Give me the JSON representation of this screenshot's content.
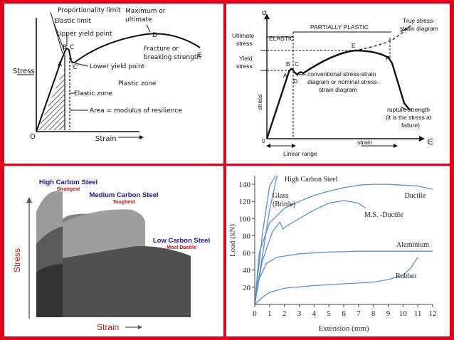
{
  "panel1": {
    "annotations": {
      "proportionality": "Proportionality limit",
      "elastic_limit": "Elastic limit",
      "upper_yield": "Upper yield point",
      "maximum": "Maximum or",
      "ultimate": "ultimate",
      "fracture1": "Fracture or",
      "fracture2": "breaking strength",
      "lower_yield": "Lower yield point",
      "elastic_zone": "Elastic zone",
      "plastic_zone": "Plastic zone",
      "area": "Area = modulus of resilience"
    },
    "points": {
      "A": "A",
      "B": "B",
      "C": "C",
      "Cp": "C'",
      "D": "D",
      "E": "E",
      "O": "O"
    },
    "ylabel": "Stress",
    "xlabel": "Strain"
  },
  "panel2": {
    "annotations": {
      "sigma": "σ",
      "epsilon": "∈",
      "elastic": "ELASTIC",
      "partially_plastic": "PARTIALLY PLASTIC",
      "ultimate1": "Ultimate",
      "ultimate2": "stress",
      "yield1": "Yield",
      "yield2": "stress",
      "true1": "True stress-",
      "true2": "strain diagram",
      "conv1": "conventional stress-strain",
      "conv2": "diagram or nominal stress-",
      "conv3": "strain diagram",
      "rupture1": "rupture strength",
      "rupture2": "(it is the stress at",
      "rupture3": "failure)",
      "linear": "Linear range",
      "strain": "strain",
      "stress": "stress"
    },
    "points": {
      "A": "A",
      "B": "B",
      "C": "C",
      "D": "D",
      "E": "E",
      "F": "F",
      "O": "0"
    }
  },
  "panel3": {
    "series": [
      {
        "name": "High Carbon Steel",
        "note": "Strongest"
      },
      {
        "name": "Medium Carbon Steel",
        "note": "Toughest"
      },
      {
        "name": "Low Carbon Steel",
        "note": "Most Ductile"
      }
    ],
    "ylabel": "Stress",
    "xlabel": "Strain",
    "colors": {
      "title": "#1a1a8c",
      "note": "#cc1111",
      "axis_label": "#cc1111"
    }
  },
  "chart_data": {
    "type": "line",
    "xlabel": "Extension (mm)",
    "ylabel": "Load (kN)",
    "xlim": [
      0,
      12
    ],
    "ylim": [
      0,
      150
    ],
    "xticks": [
      "0",
      "1",
      "2",
      "3",
      "4",
      "5",
      "6",
      "7",
      "8",
      "9",
      "10",
      "11",
      "12"
    ],
    "yticks": [
      "20",
      "40",
      "60",
      "80",
      "100",
      "120",
      "140"
    ],
    "series": [
      {
        "name": "High Carbon Steel",
        "label_lines": [
          "High Carbon Steel"
        ],
        "x": [
          0,
          0.5,
          1.0,
          1.4
        ],
        "y": [
          0,
          80,
          138,
          150
        ]
      },
      {
        "name": "Glass (Brittle)",
        "label_lines": [
          "Glass",
          "(Brittle)"
        ],
        "x": [
          0,
          0.5,
          1.0,
          1.5
        ],
        "y": [
          0,
          55,
          110,
          150
        ]
      },
      {
        "name": "Ductile",
        "label_lines": [
          "Ductile"
        ],
        "x": [
          0,
          0.3,
          1.0,
          2,
          3,
          4,
          5,
          6,
          7,
          8,
          9,
          10,
          11,
          12
        ],
        "y": [
          0,
          60,
          95,
          112,
          120,
          127,
          132,
          136,
          139,
          140,
          140,
          139,
          138,
          134
        ]
      },
      {
        "name": "M.S. -Ductile",
        "label_lines": [
          "M.S. -Ductile"
        ],
        "x": [
          0,
          0.5,
          1.2,
          1.7,
          1.9,
          2.2,
          3,
          4,
          5,
          6,
          7,
          7.5
        ],
        "y": [
          0,
          50,
          85,
          96,
          88,
          92,
          100,
          110,
          118,
          121,
          118,
          112
        ]
      },
      {
        "name": "Aluminium",
        "label_lines": [
          "Aluminium"
        ],
        "x": [
          0,
          0.3,
          0.8,
          1.5,
          3,
          5,
          7,
          9,
          10,
          11,
          12
        ],
        "y": [
          0,
          30,
          48,
          55,
          59,
          61,
          62,
          62,
          62,
          62,
          62
        ]
      },
      {
        "name": "Rubber",
        "label_lines": [
          "Rubber"
        ],
        "x": [
          0,
          0.5,
          1,
          2,
          4,
          6,
          8,
          9,
          10,
          10.5,
          11
        ],
        "y": [
          0,
          8,
          14,
          19,
          22,
          24,
          26,
          29,
          34,
          42,
          55
        ]
      }
    ],
    "colors": {
      "line": "#5b8fd6",
      "axis": "#444444",
      "text": "#222222"
    }
  }
}
